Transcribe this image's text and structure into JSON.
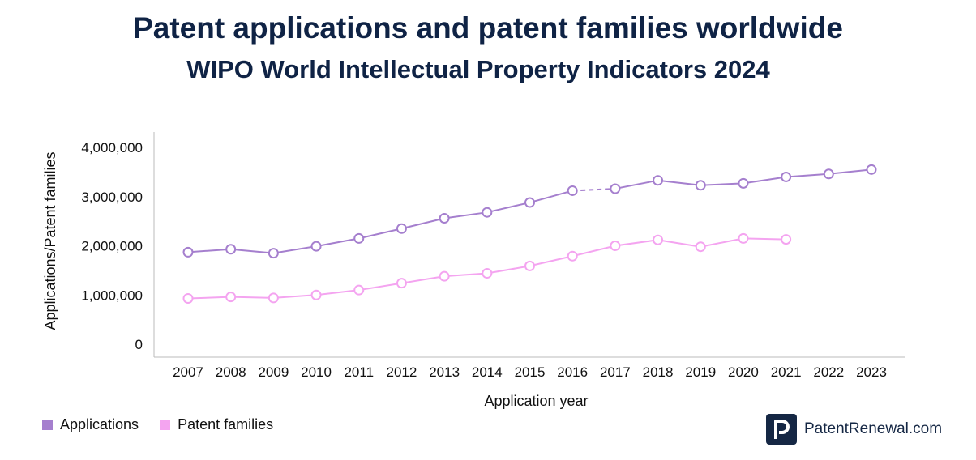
{
  "header": {
    "title": "Patent applications and patent families worldwide",
    "subtitle": "WIPO World Intellectual Property Indicators 2024"
  },
  "brand": {
    "name": "PatentRenewal.com",
    "logo_icon": "p-letter-icon"
  },
  "colors": {
    "applications": "#a57fce",
    "families": "#f4a4f0",
    "axis": "#bbbbbb",
    "text": "#111111"
  },
  "chart_data": {
    "type": "line",
    "xlabel": "Application year",
    "ylabel": "Applications/Patent families",
    "ylim": [
      0,
      4000000
    ],
    "yticks": [
      0,
      1000000,
      2000000,
      3000000,
      4000000
    ],
    "ytick_labels": [
      "0",
      "1,000,000",
      "2,000,000",
      "3,000,000",
      "4,000,000"
    ],
    "grid": false,
    "legend_position": "bottom-left",
    "x": [
      "2007",
      "2008",
      "2009",
      "2010",
      "2011",
      "2012",
      "2013",
      "2014",
      "2015",
      "2016",
      "2017",
      "2018",
      "2019",
      "2020",
      "2021",
      "2022",
      "2023"
    ],
    "series": [
      {
        "name": "Applications",
        "values": [
          1870000,
          1930000,
          1850000,
          1990000,
          2150000,
          2350000,
          2560000,
          2680000,
          2880000,
          3120000,
          3160000,
          3330000,
          3230000,
          3270000,
          3400000,
          3460000,
          3550000
        ],
        "dashed_segments": [
          [
            2016,
            2017
          ]
        ]
      },
      {
        "name": "Patent families",
        "values": [
          930000,
          960000,
          940000,
          1000000,
          1100000,
          1240000,
          1380000,
          1440000,
          1590000,
          1790000,
          2000000,
          2120000,
          1980000,
          2150000,
          2130000,
          null,
          null
        ]
      }
    ]
  }
}
